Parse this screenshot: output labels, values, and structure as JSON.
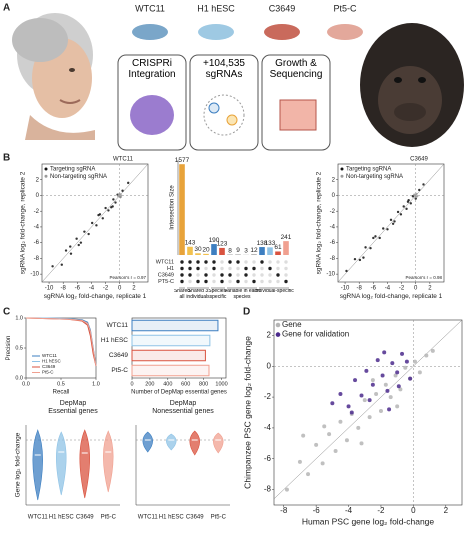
{
  "panel_labels": [
    "A",
    "B",
    "C",
    "D"
  ],
  "panel_a": {
    "cell_lines": [
      "WTC11",
      "H1 hESC",
      "C3649",
      "Pt5-C"
    ],
    "steps": [
      "CRISPRi Integration",
      "+104,535 sgRNAs",
      "Growth & Sequencing"
    ]
  },
  "chart_data": [
    {
      "type": "scatter",
      "title": "WTC11",
      "xlabel": "sgRNA log₂ fold-change, replicate 1",
      "ylabel": "sgRNA log₂ fold-change, replicate 2",
      "annotation": "Pearson's r = 0.97",
      "xlim": [
        -11,
        4
      ],
      "ylim": [
        -11,
        4
      ],
      "xticks": [
        -10,
        -8,
        -6,
        -4,
        -2,
        0,
        2
      ],
      "yticks": [
        -10,
        -8,
        -6,
        -4,
        -2,
        0,
        2
      ],
      "series": [
        {
          "name": "Targeting sgRNA",
          "color": "#111111",
          "x": [
            -9.5,
            -8.2,
            -7.6,
            -6.9,
            -6.1,
            -5.5,
            -5.0,
            -4.4,
            -3.9,
            -3.3,
            -2.8,
            -2.4,
            -2.0,
            -1.6,
            -1.2,
            -0.9,
            -0.6,
            -0.3,
            0.1,
            0.4,
            -1.0,
            -3.0,
            -5.8,
            -7.0,
            1.2
          ],
          "values": [
            -9.0,
            -8.8,
            -7.0,
            -7.4,
            -5.5,
            -6.0,
            -4.6,
            -4.9,
            -3.5,
            -3.8,
            -2.4,
            -2.9,
            -1.6,
            -1.9,
            -1.5,
            -0.5,
            -0.9,
            0.1,
            -0.2,
            0.6,
            -1.4,
            -2.5,
            -6.3,
            -6.5,
            1.6
          ]
        },
        {
          "name": "Non-targeting sgRNA",
          "color": "#9a9a9a",
          "x": [
            -0.2,
            0.0,
            0.2,
            -0.1,
            0.1
          ],
          "values": [
            -0.1,
            0.2,
            0.0,
            0.1,
            -0.2
          ]
        }
      ]
    },
    {
      "type": "upset",
      "ylabel": "Intersection Size",
      "values": [
        1577,
        143,
        30,
        20,
        190,
        123,
        8,
        9,
        3,
        12,
        138,
        133,
        61,
        241
      ],
      "colors": [
        "#e8a33a",
        "#f2c14e",
        "#f2c14e",
        "#f2c14e",
        "#3d7fc1",
        "#d9533f",
        "#999999",
        "#999999",
        "#999999",
        "#999999",
        "#3d7fc1",
        "#8fc3e6",
        "#d9533f",
        "#f0a090"
      ],
      "ylim": [
        0,
        1650
      ],
      "sets": [
        "WTC11",
        "H1",
        "C3649",
        "PT5-C"
      ],
      "membership": [
        [
          1,
          1,
          1,
          1
        ],
        [
          1,
          1,
          1,
          0
        ],
        [
          1,
          1,
          0,
          1
        ],
        [
          1,
          0,
          1,
          1
        ],
        [
          1,
          1,
          0,
          0
        ],
        [
          0,
          0,
          1,
          1
        ],
        [
          1,
          0,
          1,
          0
        ],
        [
          1,
          0,
          0,
          1
        ],
        [
          0,
          1,
          1,
          0
        ],
        [
          0,
          1,
          0,
          1
        ],
        [
          1,
          0,
          0,
          0
        ],
        [
          0,
          1,
          0,
          0
        ],
        [
          0,
          0,
          1,
          0
        ],
        [
          0,
          0,
          0,
          1
        ]
      ],
      "groups": [
        {
          "label": "Shared all",
          "columns": [
            0,
            0
          ]
        },
        {
          "label": "Shared 3 individuals",
          "columns": [
            1,
            3
          ]
        },
        {
          "label": "Species-specific",
          "columns": [
            4,
            5
          ]
        },
        {
          "label": "Variable in each species",
          "columns": [
            6,
            9
          ]
        },
        {
          "label": "Individual-specific",
          "columns": [
            10,
            13
          ]
        }
      ]
    },
    {
      "type": "scatter",
      "title": "C3649",
      "xlabel": "sgRNA log₂ fold-change, replicate 1",
      "ylabel": "sgRNA log₂ fold-change, replicate 2",
      "annotation": "Pearson's r = 0.98",
      "xlim": [
        -11,
        4
      ],
      "ylim": [
        -11,
        4
      ],
      "xticks": [
        -10,
        -8,
        -6,
        -4,
        -2,
        0,
        2
      ],
      "yticks": [
        -10,
        -8,
        -6,
        -4,
        -2,
        0,
        2
      ],
      "series": [
        {
          "name": "Targeting sgRNA",
          "color": "#111111",
          "x": [
            -9.8,
            -8.6,
            -7.9,
            -7.1,
            -6.4,
            -5.7,
            -5.1,
            -4.6,
            -4.0,
            -3.5,
            -3.0,
            -2.5,
            -2.1,
            -1.7,
            -1.3,
            -1.0,
            -0.7,
            -0.4,
            0.0,
            0.5,
            -1.1,
            -3.2,
            -6.0,
            -7.4,
            1.1
          ],
          "values": [
            -9.6,
            -8.1,
            -8.2,
            -6.6,
            -6.7,
            -5.2,
            -5.4,
            -4.2,
            -4.3,
            -3.1,
            -3.3,
            -2.1,
            -2.4,
            -1.4,
            -1.7,
            -0.6,
            -1.0,
            -0.1,
            -0.4,
            0.7,
            -0.8,
            -3.6,
            -5.4,
            -7.9,
            1.4
          ]
        },
        {
          "name": "Non-targeting sgRNA",
          "color": "#9a9a9a",
          "x": [
            -0.1,
            0.1,
            0.2,
            -0.2,
            0.0
          ],
          "values": [
            0.0,
            0.2,
            -0.1,
            0.1,
            -0.2
          ]
        }
      ]
    },
    {
      "type": "line",
      "xlabel": "Recall",
      "ylabel": "Precision",
      "xlim": [
        0,
        1
      ],
      "ylim": [
        0,
        1
      ],
      "xticks": [
        {
          "value": 0,
          "label": "0.0"
        },
        {
          "value": 0.5,
          "label": "0.5"
        },
        {
          "value": 1,
          "label": "1.0"
        }
      ],
      "yticks": [
        {
          "value": 0,
          "label": "0.0"
        },
        {
          "value": 0.5,
          "label": "0.5"
        },
        {
          "value": 1,
          "label": "1.0"
        }
      ],
      "x": [
        0,
        0.3,
        0.6,
        0.8,
        0.88,
        0.92,
        0.96,
        1.0
      ],
      "series": [
        {
          "name": "WTC11",
          "color": "#3d7fc1",
          "values": [
            1,
            1,
            0.99,
            0.97,
            0.93,
            0.8,
            0.5,
            0.2
          ]
        },
        {
          "name": "H1 hESC",
          "color": "#8fc3e6",
          "values": [
            1,
            1,
            0.99,
            0.96,
            0.9,
            0.75,
            0.45,
            0.2
          ]
        },
        {
          "name": "C3649",
          "color": "#d9533f",
          "values": [
            1,
            0.99,
            0.98,
            0.95,
            0.88,
            0.7,
            0.4,
            0.2
          ]
        },
        {
          "name": "Pt5-C",
          "color": "#f0a090",
          "values": [
            1,
            0.99,
            0.98,
            0.96,
            0.91,
            0.78,
            0.48,
            0.2
          ]
        }
      ]
    },
    {
      "type": "bar",
      "orientation": "horizontal",
      "xlabel": "Number of DepMap essential genes",
      "categories": [
        "WTC11",
        "H1 hESC",
        "C3649",
        "Pt5-C"
      ],
      "values": [
        960,
        870,
        820,
        860
      ],
      "colors": [
        "#3d7fc1",
        "#8fc3e6",
        "#d9533f",
        "#f0a090"
      ],
      "xlim": [
        0,
        1050
      ],
      "xticks": [
        0,
        200,
        400,
        600,
        800,
        1000
      ]
    },
    {
      "type": "violin",
      "title": "DepMap",
      "subtitle": "Essential genes",
      "ylabel": "Gene log₂ fold-change",
      "categories": [
        "WTC11",
        "H1 hESC",
        "C3649",
        "Pt5-C"
      ],
      "values": [
        -1.5,
        -1.2,
        -1.3,
        -1.2
      ],
      "mins": [
        -6.0,
        -5.5,
        -5.8,
        -5.2
      ],
      "maxs": [
        1.0,
        0.8,
        1.0,
        0.9
      ],
      "colors": [
        "#3d7fc1",
        "#8fc3e6",
        "#d9533f",
        "#f0a090"
      ],
      "ylim": [
        -6.5,
        1.5
      ]
    },
    {
      "type": "violin",
      "title": "DepMap",
      "subtitle": "Nonessential genes",
      "categories": [
        "WTC11",
        "H1 hESC",
        "C3649",
        "Pt5-C"
      ],
      "values": [
        0,
        0,
        0,
        0
      ],
      "mins": [
        -1.2,
        -1.0,
        -1.5,
        -1.3
      ],
      "maxs": [
        0.8,
        0.6,
        0.9,
        0.7
      ],
      "colors": [
        "#3d7fc1",
        "#8fc3e6",
        "#d9533f",
        "#f0a090"
      ],
      "ylim": [
        -6.5,
        1.5
      ]
    },
    {
      "type": "scatter",
      "xlabel": "Human PSC gene log₂ fold-change",
      "ylabel": "Chimpanzee PSC gene log₂ fold-change",
      "xlim": [
        -8.6,
        3
      ],
      "ylim": [
        -9,
        3
      ],
      "xticks": [
        -8,
        -6,
        -4,
        -2,
        0,
        2
      ],
      "yticks": [
        -8,
        -6,
        -4,
        -2,
        0,
        2
      ],
      "series": [
        {
          "name": "Gene",
          "color": "#b5b5b5",
          "x": [
            -7.8,
            -7.0,
            -6.5,
            -6.0,
            -5.6,
            -5.2,
            -4.8,
            -4.5,
            -4.1,
            -3.8,
            -3.4,
            -3.0,
            -2.7,
            -2.3,
            -2.0,
            -1.7,
            -1.4,
            -1.1,
            -0.8,
            -0.5,
            -0.2,
            0.1,
            0.4,
            0.8,
            1.2,
            -5.5,
            -3.2,
            -1.0,
            -6.8,
            -2.5
          ],
          "values": [
            -8.0,
            -6.2,
            -7.0,
            -5.1,
            -6.3,
            -4.4,
            -5.5,
            -3.6,
            -4.8,
            -3.1,
            -4.0,
            -2.2,
            -3.3,
            -1.8,
            -2.9,
            -1.2,
            -2.0,
            -0.6,
            -1.5,
            -0.1,
            -0.8,
            0.3,
            -0.4,
            0.7,
            1.0,
            -3.9,
            -5.0,
            -2.6,
            -4.5,
            -0.9
          ]
        },
        {
          "name": "Gene for validation",
          "color": "#4b2a8c",
          "x": [
            -4.5,
            -4.0,
            -3.6,
            -3.2,
            -2.9,
            -2.5,
            -2.2,
            -1.9,
            -1.6,
            -1.3,
            -1.0,
            -0.7,
            -0.4,
            -3.8,
            -2.7,
            -1.8,
            -0.9,
            -0.2,
            -5.0,
            -1.5
          ],
          "values": [
            -1.8,
            -2.6,
            -0.9,
            -1.9,
            -0.3,
            -1.2,
            0.4,
            -0.6,
            -1.6,
            0.2,
            -0.4,
            0.8,
            0.3,
            -3.0,
            -2.2,
            0.9,
            -1.3,
            -0.8,
            -2.4,
            -2.8
          ]
        }
      ]
    }
  ]
}
